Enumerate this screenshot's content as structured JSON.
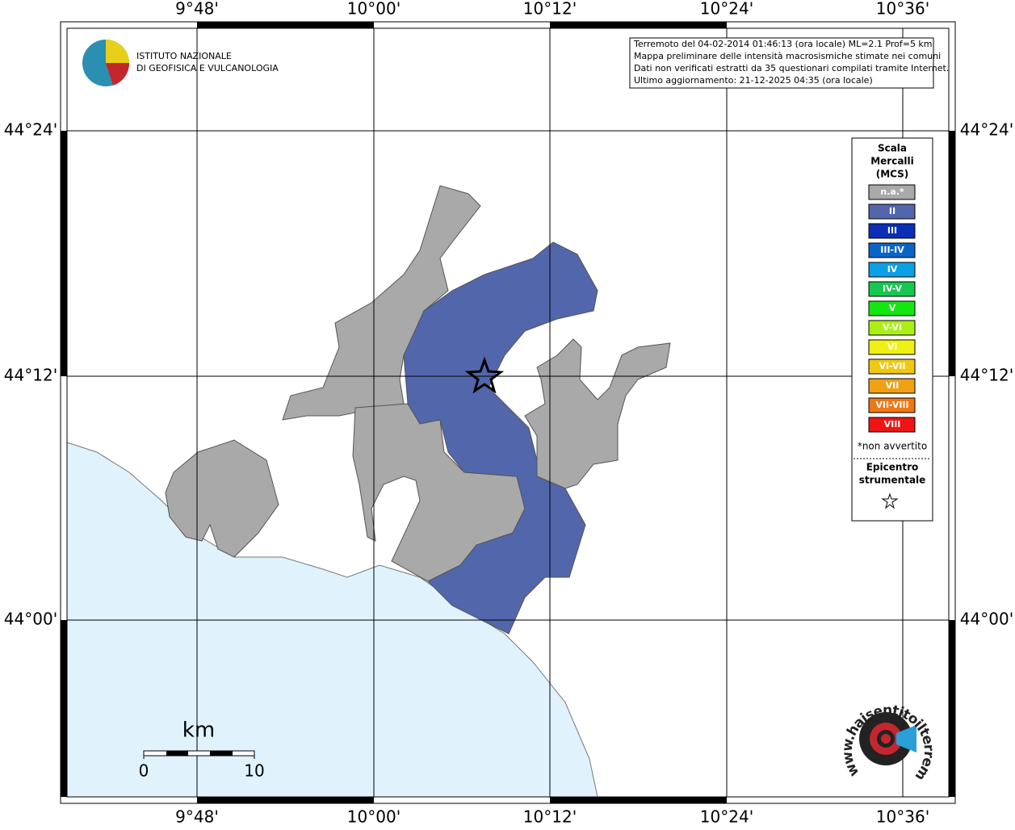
{
  "map": {
    "lon_labels": [
      "9°48'",
      "10°00'",
      "10°12'",
      "10°24'",
      "10°36'"
    ],
    "lat_labels": [
      "44°24'",
      "44°12'",
      "44°00'"
    ],
    "logo": {
      "line1": "ISTITUTO NAZIONALE",
      "line2": "DI GEOFISICA E VULCANOLOGIA"
    },
    "info": [
      "Terremoto del 04-02-2014 01:46:13 (ora locale) ML=2.1 Prof=5 km",
      "Mappa preliminare delle intensità macrosismiche stimate nei comuni",
      "Dati non verificati estratti da 35 questionari compilati tramite Internet.",
      "Ultimo aggiornamento: 21-12-2025 04:35 (ora locale)"
    ],
    "legend": {
      "title": [
        "Scala",
        "Mercalli",
        "(MCS)"
      ],
      "classes": [
        {
          "label": "n.a.*",
          "color": "#a9a9a9"
        },
        {
          "label": "II",
          "color": "#5266ac"
        },
        {
          "label": "III",
          "color": "#0a2fb4"
        },
        {
          "label": "III-IV",
          "color": "#0a64c8"
        },
        {
          "label": "IV",
          "color": "#0aa0e6"
        },
        {
          "label": "IV-V",
          "color": "#14c850"
        },
        {
          "label": "V",
          "color": "#14e614"
        },
        {
          "label": "V-VI",
          "color": "#aaf014"
        },
        {
          "label": "VI",
          "color": "#f0f014"
        },
        {
          "label": "VI-VII",
          "color": "#f0c814"
        },
        {
          "label": "VII",
          "color": "#f0a014"
        },
        {
          "label": "VII-VIII",
          "color": "#f07814"
        },
        {
          "label": "VIII",
          "color": "#f01414"
        }
      ],
      "note": "*non avvertito",
      "epicenter": [
        "Epicentro",
        "strumentale"
      ]
    },
    "scale": {
      "unit": "km",
      "start": "0",
      "end": "10"
    },
    "site": "www.haisentitoilterremoto.it"
  }
}
